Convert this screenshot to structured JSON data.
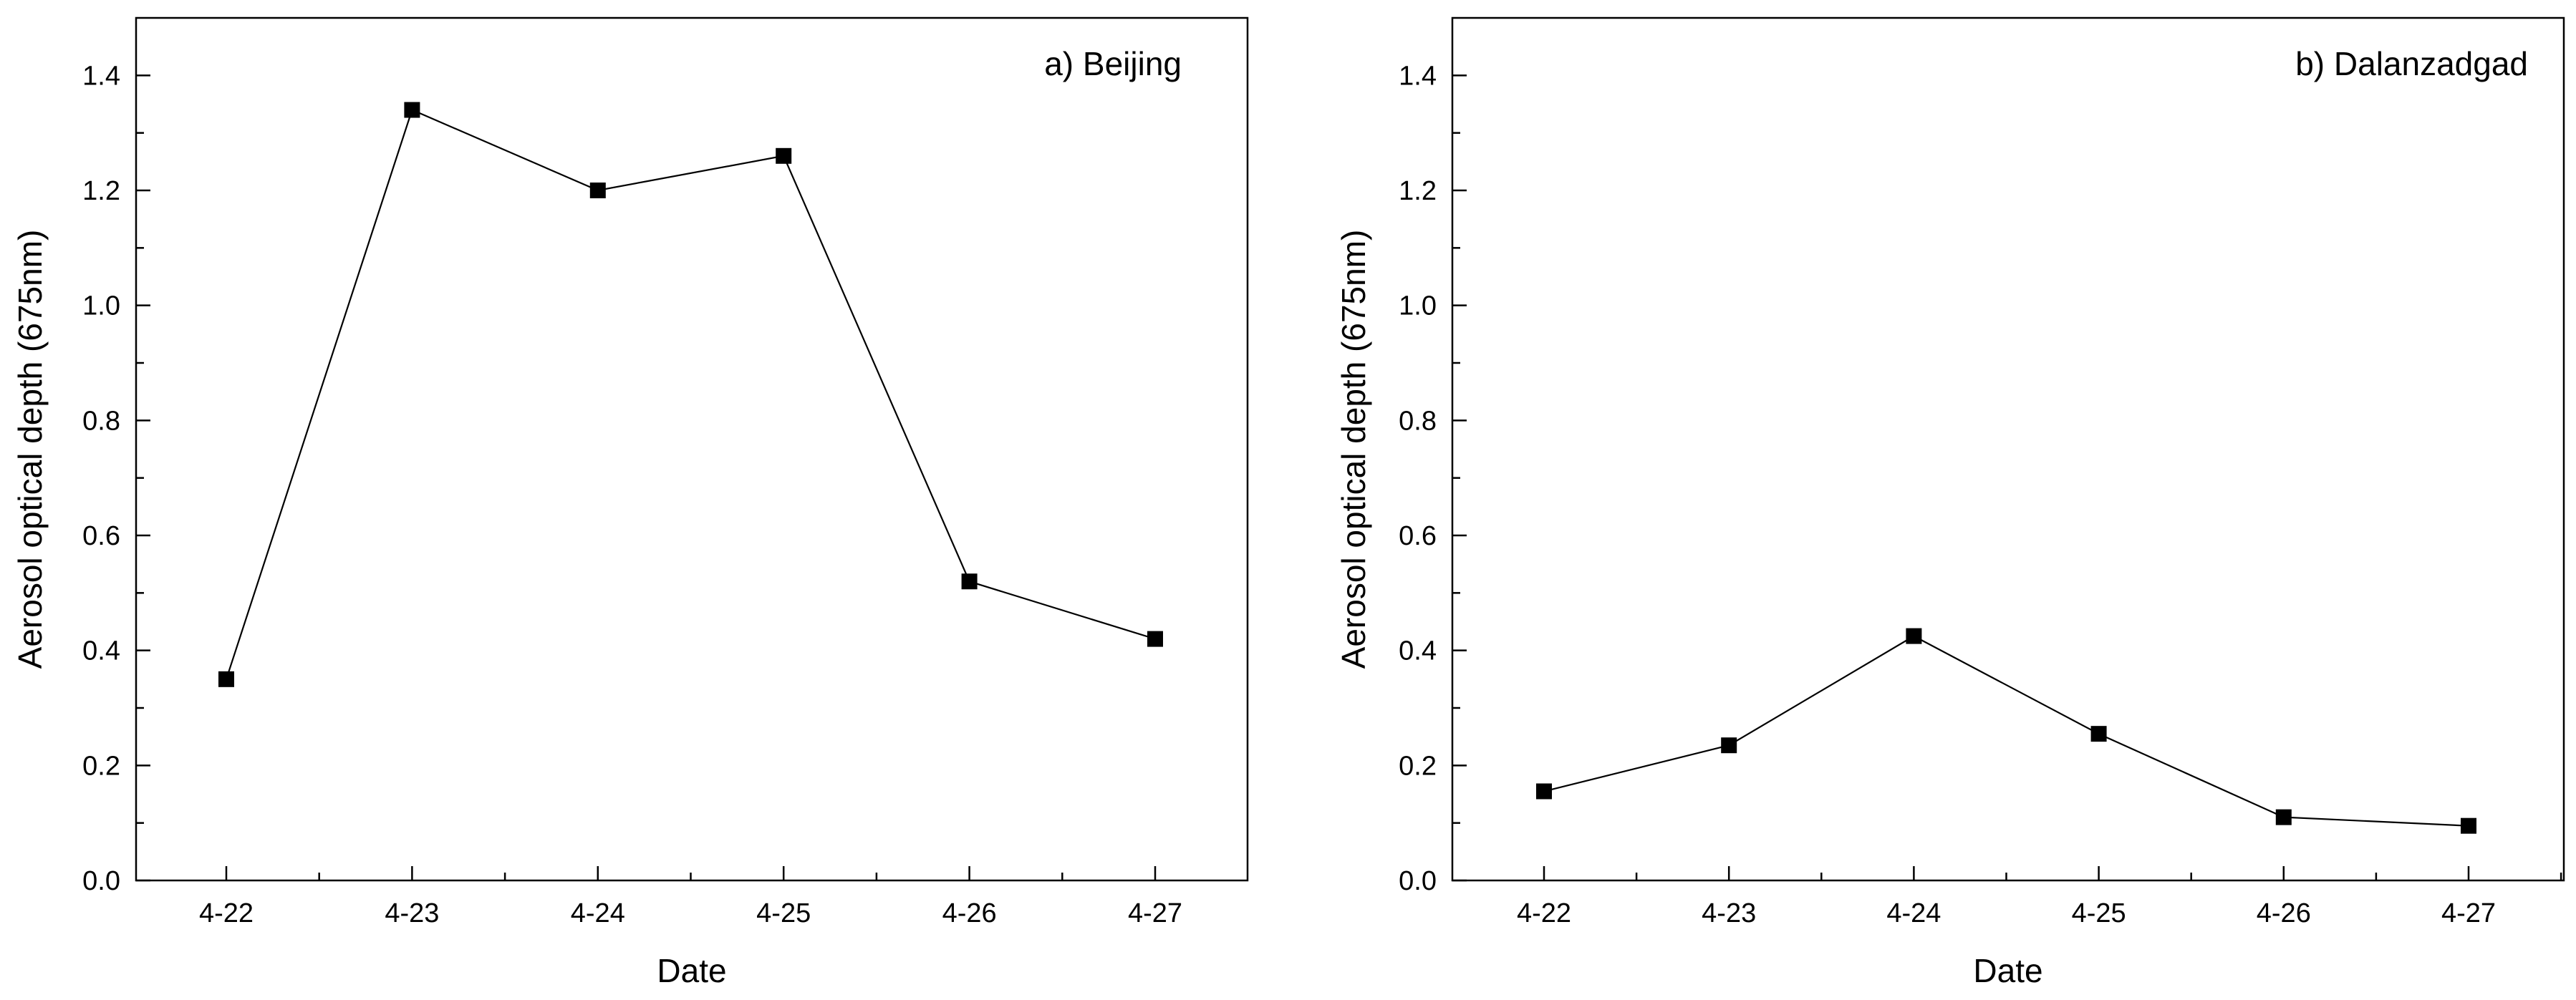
{
  "chart_data": [
    {
      "type": "line",
      "title": "a) Beijing",
      "xlabel": "Date",
      "ylabel": "Aerosol optical depth (675nm)",
      "categories": [
        "4-22",
        "4-23",
        "4-24",
        "4-25",
        "4-26",
        "4-27"
      ],
      "series": [
        {
          "values": [
            0.35,
            1.34,
            1.2,
            1.26,
            0.52,
            0.42
          ]
        }
      ],
      "ylim": [
        0,
        1.5
      ],
      "yticks": [
        0.0,
        0.2,
        0.4,
        0.6,
        0.8,
        1.0,
        1.2,
        1.4
      ],
      "ytick_labels": [
        "0.0",
        "0.2",
        "0.4",
        "0.6",
        "0.8",
        "1.0",
        "1.2",
        "1.4"
      ],
      "marker": "square",
      "grid": false,
      "legend": "none",
      "color": "#000000"
    },
    {
      "type": "line",
      "title": "b) Dalanzadgad",
      "xlabel": "Date",
      "ylabel": "Aerosol optical depth (675nm)",
      "categories": [
        "4-22",
        "4-23",
        "4-24",
        "4-25",
        "4-26",
        "4-27"
      ],
      "series": [
        {
          "values": [
            0.155,
            0.235,
            0.425,
            0.255,
            0.11,
            0.095
          ]
        }
      ],
      "ylim": [
        0,
        1.5
      ],
      "yticks": [
        0.0,
        0.2,
        0.4,
        0.6,
        0.8,
        1.0,
        1.2,
        1.4
      ],
      "ytick_labels": [
        "0.0",
        "0.2",
        "0.4",
        "0.6",
        "0.8",
        "1.0",
        "1.2",
        "1.4"
      ],
      "marker": "square",
      "grid": false,
      "legend": "none",
      "color": "#000000"
    }
  ]
}
